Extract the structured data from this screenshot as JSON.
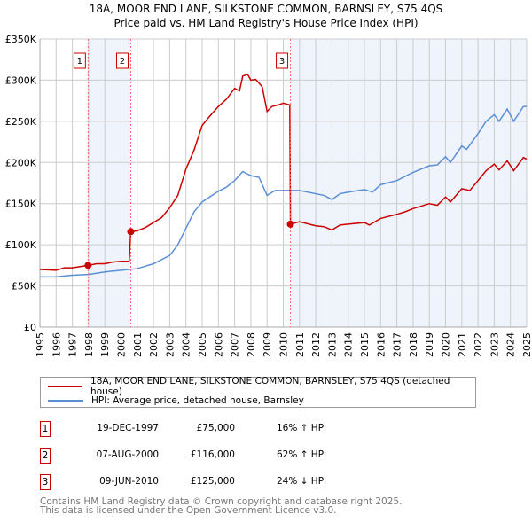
{
  "chart_data": {
    "type": "line",
    "title": "18A, MOOR END LANE, SILKSTONE COMMON, BARNSLEY, S75 4QS",
    "subtitle": "Price paid vs. HM Land Registry's House Price Index (HPI)",
    "xlim": [
      1995,
      2025
    ],
    "ylim": [
      0,
      350000
    ],
    "y_ticks": [
      {
        "v": 0,
        "l": "£0"
      },
      {
        "v": 50000,
        "l": "£50K"
      },
      {
        "v": 100000,
        "l": "£100K"
      },
      {
        "v": 150000,
        "l": "£150K"
      },
      {
        "v": 200000,
        "l": "£200K"
      },
      {
        "v": 250000,
        "l": "£250K"
      },
      {
        "v": 300000,
        "l": "£300K"
      },
      {
        "v": 350000,
        "l": "£350K"
      }
    ],
    "x_ticks": [
      "1995",
      "1996",
      "1997",
      "1998",
      "1999",
      "2000",
      "2001",
      "2002",
      "2003",
      "2004",
      "2005",
      "2006",
      "2007",
      "2008",
      "2009",
      "2010",
      "2011",
      "2012",
      "2013",
      "2014",
      "2015",
      "2016",
      "2017",
      "2018",
      "2019",
      "2020",
      "2021",
      "2022",
      "2023",
      "2024",
      "2025"
    ],
    "grid": true,
    "series": [
      {
        "name": "18A, MOOR END LANE, SILKSTONE COMMON, BARNSLEY, S75 4QS (detached house)",
        "color": "#cc0000",
        "x": [
          1995,
          1996,
          1996.5,
          1997,
          1997.97,
          1998.5,
          1999,
          1999.5,
          2000,
          2000.5,
          2000.6,
          2001,
          2001.5,
          2002,
          2002.5,
          2003,
          2003.5,
          2004,
          2004.5,
          2005,
          2005.5,
          2006,
          2006.5,
          2007,
          2007.3,
          2007.5,
          2007.8,
          2008,
          2008.3,
          2008.7,
          2009,
          2009.3,
          2009.7,
          2010,
          2010.4,
          2010.44,
          2011,
          2012,
          2012.5,
          2013,
          2013.5,
          2014,
          2015,
          2015.3,
          2016,
          2017,
          2017.5,
          2018,
          2019,
          2019.5,
          2020,
          2020.3,
          2021,
          2021.5,
          2022,
          2022.5,
          2023,
          2023.3,
          2023.8,
          2024.2,
          2024.8,
          2025
        ],
        "y": [
          70,
          69,
          72,
          72,
          75,
          77,
          77,
          79,
          80,
          80,
          116,
          117,
          121,
          127,
          133,
          145,
          160,
          192,
          215,
          245,
          257,
          268,
          277,
          290,
          287,
          305,
          307,
          300,
          301,
          292,
          262,
          268,
          270,
          272,
          270,
          125,
          128,
          123,
          122,
          118,
          124,
          125,
          127,
          124,
          132,
          137,
          140,
          144,
          150,
          148,
          158,
          152,
          168,
          166,
          178,
          190,
          198,
          191,
          202,
          190,
          206,
          204
        ]
      },
      {
        "name": "HPI: Average price, detached house, Barnsley",
        "color": "#5b8fd4",
        "x": [
          1995,
          1996,
          1996.5,
          1997,
          1998,
          1999,
          2000,
          2001,
          2002,
          2003,
          2003.5,
          2004,
          2004.5,
          2005,
          2006,
          2006.5,
          2007,
          2007.5,
          2008,
          2008.5,
          2009,
          2009.5,
          2010,
          2011,
          2012,
          2012.5,
          2013,
          2013.5,
          2014,
          2015,
          2015.5,
          2016,
          2017,
          2018,
          2019,
          2019.5,
          2020,
          2020.3,
          2021,
          2021.3,
          2022,
          2022.5,
          2023,
          2023.3,
          2023.8,
          2024.2,
          2024.8,
          2025
        ],
        "y": [
          61,
          61,
          62,
          63,
          64,
          67,
          69,
          71,
          77,
          87,
          100,
          120,
          140,
          152,
          165,
          170,
          178,
          189,
          184,
          182,
          160,
          166,
          166,
          166,
          162,
          160,
          155,
          162,
          164,
          167,
          164,
          173,
          178,
          188,
          196,
          197,
          207,
          200,
          220,
          216,
          235,
          250,
          258,
          250,
          265,
          250,
          268,
          268
        ]
      }
    ],
    "y_unit": 1000,
    "sales": [
      {
        "n": "1",
        "date": "19-DEC-1997",
        "price": "£75,000",
        "hpi": "16% ↑ HPI",
        "x": 1997.97,
        "y": 75
      },
      {
        "n": "2",
        "date": "07-AUG-2000",
        "price": "£116,000",
        "hpi": "62% ↑ HPI",
        "x": 2000.6,
        "y": 116
      },
      {
        "n": "3",
        "date": "09-JUN-2010",
        "price": "£125,000",
        "hpi": "24% ↓ HPI",
        "x": 2010.44,
        "y": 125
      }
    ]
  },
  "footer": {
    "line1": "Contains HM Land Registry data © Crown copyright and database right 2025.",
    "line2": "This data is licensed under the Open Government Licence v3.0."
  }
}
